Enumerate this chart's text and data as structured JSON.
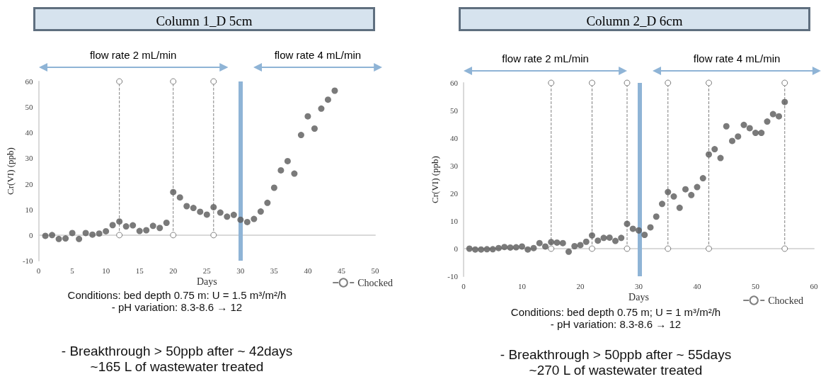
{
  "chart_data": [
    {
      "type": "scatter",
      "title": "Column 1_D 5cm",
      "xlabel": "Days",
      "ylabel": "Cr(VI) (ppb)",
      "xlim": [
        0,
        50
      ],
      "xticks": [
        0,
        5,
        10,
        15,
        20,
        25,
        30,
        35,
        40,
        45,
        50
      ],
      "ylim": [
        -10,
        60
      ],
      "yticks": [
        -10,
        0,
        10,
        20,
        30,
        40,
        50,
        60
      ],
      "grid": false,
      "legend": "bottom right",
      "marker": "circle",
      "series": [
        {
          "color": "#595959",
          "x": [
            1,
            2,
            3,
            4,
            5,
            6,
            7,
            8,
            9,
            10,
            11,
            12,
            13,
            14,
            15,
            16,
            17,
            18,
            19,
            20,
            21,
            22,
            23,
            24,
            25,
            26,
            27,
            28,
            29,
            30,
            31,
            32,
            33,
            34,
            35,
            36,
            37,
            38,
            39,
            40,
            41,
            42,
            43,
            44
          ],
          "values": [
            -0.3,
            0,
            -1.5,
            -1.3,
            0.8,
            -1.5,
            0.8,
            0.2,
            0.6,
            1.5,
            3.9,
            5.3,
            3.4,
            3.8,
            1.6,
            1.9,
            3.6,
            2.8,
            4.8,
            16.8,
            14.7,
            11.3,
            10.6,
            9.1,
            8.0,
            10.9,
            8.8,
            7.2,
            7.9,
            6.0,
            5.1,
            6.3,
            9.2,
            12.6,
            18.5,
            25.3,
            28.9,
            24.0,
            39.1,
            46.4,
            41.6,
            49.4,
            52.9,
            56.4
          ]
        },
        {
          "type": "line",
          "name": "Chocked",
          "color": "#808080",
          "line_style": "dashed",
          "x": [
            12,
            12,
            null,
            20,
            20,
            null,
            26,
            26
          ],
          "values": [
            0,
            60,
            null,
            0,
            60,
            null,
            0,
            60
          ]
        }
      ],
      "ref_lines": [
        {
          "axis": "x",
          "value": 30,
          "color": "#8fb4d6"
        }
      ],
      "annotations": [
        "flow rate 2 mL/min",
        "flow rate 4 mL/min",
        "Conditions: bed depth 0.75 m: U = 1.5 m³/m²/h",
        "- pH variation: 8.3-8.6 → 12",
        "- Breakthrough > 50ppb after ~ 42days",
        "~165 L of wastewater treated"
      ]
    },
    {
      "type": "scatter",
      "title": "Column 2_D 6cm",
      "xlabel": "Days",
      "ylabel": "Cr(VI) (ppb)",
      "xlim": [
        0,
        60
      ],
      "xticks": [
        0,
        10,
        20,
        30,
        40,
        50,
        60
      ],
      "ylim": [
        -10,
        60
      ],
      "yticks": [
        -10,
        0,
        10,
        20,
        30,
        40,
        50,
        60
      ],
      "grid": false,
      "legend": "bottom right",
      "marker": "circle",
      "series": [
        {
          "color": "#595959",
          "x": [
            1,
            2,
            3,
            4,
            5,
            6,
            7,
            8,
            9,
            10,
            11,
            12,
            13,
            14,
            15,
            16,
            17,
            18,
            19,
            20,
            21,
            22,
            23,
            24,
            25,
            26,
            27,
            28,
            29,
            30,
            31,
            32,
            33,
            34,
            35,
            36,
            37,
            38,
            39,
            40,
            41,
            42,
            43,
            44,
            45,
            46,
            47,
            48,
            49,
            50,
            51,
            52,
            53,
            54,
            55
          ],
          "values": [
            0,
            -0.3,
            -0.3,
            -0.2,
            -0.2,
            0.2,
            0.6,
            0.4,
            0.5,
            0.8,
            -0.3,
            0.2,
            2.0,
            0.8,
            2.4,
            2.2,
            2.0,
            -1.1,
            0.9,
            1.3,
            2.5,
            4.8,
            2.9,
            3.9,
            4.0,
            2.8,
            3.9,
            9.0,
            7.2,
            6.6,
            5.0,
            7.7,
            11.6,
            16.2,
            20.5,
            18.9,
            14.8,
            21.5,
            19.4,
            22.3,
            25.5,
            34.1,
            36.0,
            32.8,
            44.3,
            39.0,
            40.6,
            44.8,
            43.6,
            41.9,
            41.9,
            46.0,
            48.7,
            47.9,
            53.1
          ]
        },
        {
          "type": "line",
          "name": "Chocked",
          "color": "#808080",
          "line_style": "dashed",
          "x": [
            15,
            15,
            null,
            22,
            22,
            null,
            28,
            28,
            null,
            35,
            35,
            null,
            42,
            42,
            null,
            55,
            55
          ],
          "values": [
            0,
            60,
            null,
            0,
            60,
            null,
            0,
            60,
            null,
            0,
            60,
            null,
            0,
            60,
            null,
            0,
            60
          ]
        }
      ],
      "ref_lines": [
        {
          "axis": "x",
          "value": 30.2,
          "color": "#8fb4d6"
        }
      ],
      "annotations": [
        "flow rate 2 mL/min",
        "flow rate 4 mL/min",
        "Conditions: bed depth 0.75 m; U = 1 m³/m²/h",
        "- pH variation: 8.3-8.6 → 12",
        "- Breakthrough > 50ppb after ~ 55days",
        "~270 L of wastewater treated"
      ]
    }
  ]
}
